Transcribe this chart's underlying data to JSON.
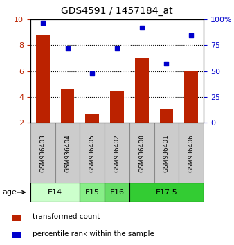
{
  "title": "GDS4591 / 1457184_at",
  "samples": [
    "GSM936403",
    "GSM936404",
    "GSM936405",
    "GSM936402",
    "GSM936400",
    "GSM936401",
    "GSM936406"
  ],
  "bar_values": [
    8.8,
    4.6,
    2.7,
    4.4,
    7.0,
    3.0,
    6.0
  ],
  "scatter_values": [
    97,
    72,
    48,
    72,
    92,
    57,
    85
  ],
  "bar_color": "#bb2200",
  "scatter_color": "#0000cc",
  "ylim_left": [
    2,
    10
  ],
  "ylim_right": [
    0,
    100
  ],
  "yticks_left": [
    2,
    4,
    6,
    8,
    10
  ],
  "yticks_right": [
    0,
    25,
    50,
    75,
    100
  ],
  "ytick_labels_right": [
    "0",
    "25",
    "50",
    "75",
    "100%"
  ],
  "grid_values": [
    4,
    6,
    8
  ],
  "age_groups": [
    {
      "label": "E14",
      "spans": [
        0,
        1
      ],
      "color": "#ccffcc"
    },
    {
      "label": "E15",
      "spans": [
        2
      ],
      "color": "#88ee88"
    },
    {
      "label": "E16",
      "spans": [
        3
      ],
      "color": "#66dd66"
    },
    {
      "label": "E17.5",
      "spans": [
        4,
        5,
        6
      ],
      "color": "#33cc33"
    }
  ],
  "legend_bar_label": "transformed count",
  "legend_scatter_label": "percentile rank within the sample",
  "age_label": "age",
  "bar_bottom": 2.0,
  "sample_box_color": "#cccccc",
  "sample_box_edge": "#888888"
}
